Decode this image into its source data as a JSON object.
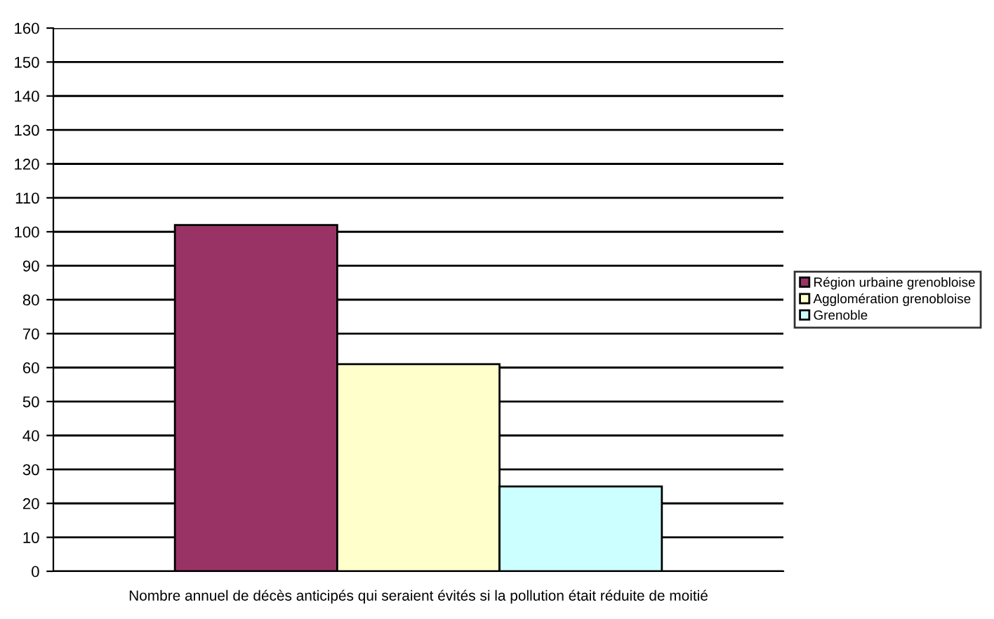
{
  "chart_data": {
    "type": "bar",
    "xlabel": "Nombre annuel de décès anticipés qui seraient évités si la pollution était réduite de moitié",
    "categories": [
      null
    ],
    "series": [
      {
        "name": "Région urbaine grenobloise",
        "color": "#993366",
        "values": [
          102
        ]
      },
      {
        "name": "Agglomération grenobloise",
        "color": "#ffffcc",
        "values": [
          61
        ]
      },
      {
        "name": "Grenoble",
        "color": "#ccffff",
        "values": [
          25
        ]
      }
    ],
    "ylim": [
      0,
      160
    ],
    "yticks": [
      0,
      10,
      20,
      30,
      40,
      50,
      60,
      70,
      80,
      90,
      100,
      110,
      120,
      130,
      140,
      150,
      160
    ],
    "grid": "y",
    "legend": "right"
  }
}
